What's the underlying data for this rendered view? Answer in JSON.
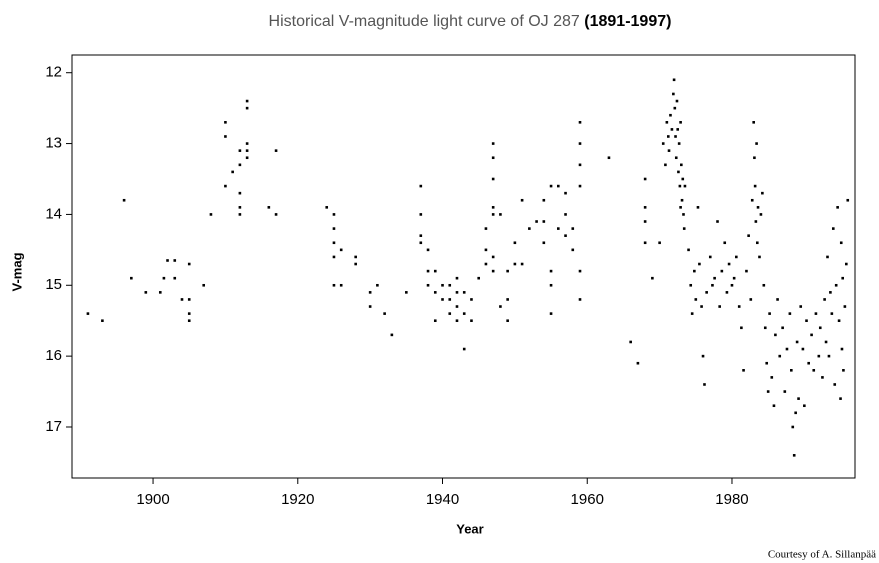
{
  "chart_data": {
    "type": "scatter",
    "title": "Historical V-magnitude light curve of OJ 287",
    "title_emphasis": "(1891-1997)",
    "x_label": "Year",
    "y_label": "V-mag",
    "credit": "Courtesy of A. Sillanpää",
    "color": "#000000",
    "xlim": [
      1888.8,
      1997
    ],
    "ylim": [
      17.72,
      11.75
    ],
    "xticks": [
      1900,
      1920,
      1940,
      1960,
      1980
    ],
    "yticks": [
      12,
      13,
      14,
      15,
      16,
      17
    ],
    "x": [
      1891,
      1893,
      1896,
      1897,
      1899,
      1901,
      1901.5,
      1902,
      1903,
      1903,
      1904,
      1905,
      1905,
      1905,
      1905,
      1907,
      1908,
      1910,
      1910,
      1910,
      1911,
      1912,
      1912,
      1912,
      1912,
      1912,
      1913,
      1913,
      1913,
      1913,
      1913,
      1916,
      1917,
      1917,
      1924,
      1925,
      1925,
      1925,
      1925,
      1925,
      1926,
      1926,
      1928,
      1928,
      1930,
      1930,
      1931,
      1932,
      1933,
      1935,
      1937,
      1937,
      1937,
      1937,
      1938,
      1938,
      1938,
      1939,
      1939,
      1939,
      1940,
      1940,
      1941,
      1941,
      1941,
      1942,
      1942,
      1942,
      1942,
      1943,
      1943,
      1943,
      1944,
      1944,
      1945,
      1946,
      1946,
      1946,
      1947,
      1947,
      1947,
      1947,
      1947,
      1947,
      1947,
      1948,
      1948,
      1949,
      1949,
      1949,
      1950,
      1950,
      1951,
      1951,
      1952,
      1953,
      1954,
      1954,
      1954,
      1955,
      1955,
      1955,
      1955,
      1956,
      1956,
      1957,
      1957,
      1957,
      1958,
      1958,
      1959,
      1959,
      1959,
      1959,
      1959,
      1959,
      1963,
      1966,
      1967,
      1968,
      1968,
      1968,
      1968,
      1969,
      1970,
      1970.5,
      1970.8,
      1971,
      1971.2,
      1971.5,
      1971.7,
      1971.9,
      1972,
      1972.1,
      1972.2,
      1972.3,
      1972.4,
      1972.5,
      1972.6,
      1972.7,
      1972.8,
      1972.9,
      1973,
      1973.1,
      1973.2,
      1973.3,
      1973.4,
      1973.5,
      1971.3,
      1972.9,
      1974,
      1974.3,
      1974.5,
      1974.8,
      1975,
      1975.3,
      1975.5,
      1975.8,
      1976,
      1976.2,
      1976.5,
      1977,
      1977.3,
      1977.6,
      1978,
      1978.3,
      1978.6,
      1979,
      1979.3,
      1979.6,
      1980,
      1980.3,
      1980.6,
      1981,
      1981.3,
      1981.6,
      1982,
      1982.3,
      1982.6,
      1982.8,
      1983,
      1983.1,
      1983.2,
      1983.3,
      1983.4,
      1983.5,
      1983.6,
      1983.8,
      1984,
      1984.2,
      1984.4,
      1984.6,
      1984.8,
      1985,
      1985.2,
      1985.5,
      1985.8,
      1986,
      1986.3,
      1986.6,
      1987,
      1987.3,
      1987.6,
      1988,
      1988.2,
      1988.4,
      1988.6,
      1988.8,
      1989,
      1989.2,
      1989.5,
      1989.8,
      1990,
      1990.3,
      1990.6,
      1991,
      1991.3,
      1991.6,
      1992,
      1992.2,
      1992.5,
      1992.8,
      1993,
      1993.2,
      1993.4,
      1993.6,
      1993.8,
      1994,
      1994.2,
      1994.4,
      1994.6,
      1994.8,
      1995,
      1995.1,
      1995.2,
      1995.3,
      1995.4,
      1995.6,
      1995.8,
      1996
    ],
    "values": [
      15.4,
      15.5,
      13.8,
      14.9,
      15.1,
      15.1,
      14.9,
      14.65,
      14.65,
      14.9,
      15.2,
      14.7,
      15.2,
      15.4,
      15.5,
      15.0,
      14.0,
      12.7,
      12.9,
      13.6,
      13.4,
      13.1,
      13.3,
      13.7,
      13.9,
      14.0,
      12.4,
      12.5,
      13.0,
      13.1,
      13.2,
      13.9,
      13.1,
      14.0,
      13.9,
      14.0,
      14.2,
      14.4,
      14.6,
      15.0,
      14.5,
      15.0,
      14.6,
      14.7,
      15.1,
      15.3,
      15.0,
      15.4,
      15.7,
      15.1,
      13.6,
      14.0,
      14.3,
      14.4,
      14.5,
      14.8,
      15.0,
      14.8,
      15.1,
      15.5,
      15.0,
      15.2,
      15.0,
      15.2,
      15.4,
      14.9,
      15.1,
      15.3,
      15.5,
      15.1,
      15.4,
      15.9,
      15.2,
      15.5,
      14.9,
      14.2,
      14.5,
      14.7,
      13.0,
      13.2,
      13.5,
      13.9,
      14.0,
      14.6,
      14.8,
      14.0,
      15.3,
      14.8,
      15.2,
      15.5,
      14.4,
      14.7,
      13.8,
      14.7,
      14.2,
      14.1,
      13.8,
      14.1,
      14.4,
      13.6,
      14.8,
      15.0,
      15.4,
      13.6,
      14.2,
      13.7,
      14.0,
      14.3,
      14.2,
      14.5,
      12.7,
      13.0,
      13.3,
      13.6,
      14.8,
      15.2,
      13.2,
      15.8,
      16.1,
      13.5,
      13.9,
      14.1,
      14.4,
      14.9,
      14.4,
      13.0,
      13.3,
      12.7,
      12.9,
      12.6,
      12.8,
      12.3,
      12.1,
      12.5,
      12.9,
      13.2,
      12.4,
      12.8,
      13.4,
      13.0,
      13.6,
      12.7,
      13.3,
      13.8,
      13.5,
      14.0,
      14.2,
      13.6,
      13.1,
      13.9,
      14.5,
      15.0,
      15.4,
      14.8,
      15.2,
      13.9,
      14.7,
      15.3,
      16.0,
      16.4,
      15.1,
      14.6,
      15.0,
      14.9,
      14.1,
      15.3,
      14.8,
      14.4,
      15.1,
      14.7,
      15.0,
      14.9,
      14.6,
      15.3,
      15.6,
      16.2,
      14.8,
      14.3,
      15.2,
      13.8,
      12.7,
      13.2,
      13.6,
      14.1,
      13.0,
      14.4,
      13.9,
      14.6,
      14.0,
      13.7,
      15.0,
      15.6,
      16.1,
      16.5,
      15.4,
      16.3,
      16.7,
      15.7,
      15.2,
      16.0,
      15.6,
      16.5,
      15.9,
      15.4,
      16.2,
      17.0,
      17.4,
      16.8,
      15.8,
      16.6,
      15.3,
      15.9,
      16.7,
      15.5,
      16.1,
      15.7,
      16.2,
      15.4,
      16.0,
      15.6,
      16.3,
      15.2,
      15.8,
      14.6,
      16.0,
      15.1,
      15.4,
      14.2,
      16.4,
      15.0,
      13.9,
      15.5,
      16.6,
      14.4,
      15.9,
      14.9,
      16.2,
      15.3,
      14.7,
      13.8
    ]
  }
}
